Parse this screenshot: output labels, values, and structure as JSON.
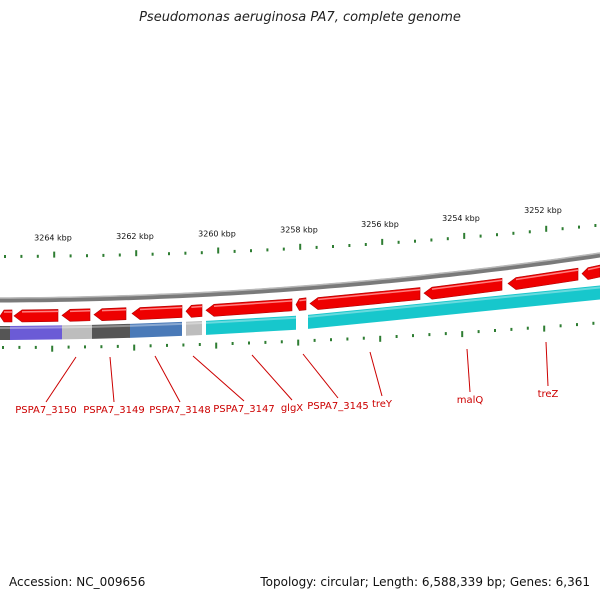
{
  "title": "Pseudomonas aeruginosa PA7, complete genome",
  "footer": {
    "accession": "Accession: NC_009656",
    "topology": "Topology: circular; Length: 6,588,339 bp; Genes: 6,361"
  },
  "scale_labels": [
    "3264 kbp",
    "3262 kbp",
    "3260 kbp",
    "3258 kbp",
    "3256 kbp",
    "3254 kbp",
    "3252 kbp"
  ],
  "gene_labels": [
    "PSPA7_3150",
    "PSPA7_3149",
    "PSPA7_3148",
    "PSPA7_3147",
    "glgX",
    "PSPA7_3145",
    "treY",
    "malQ",
    "treZ"
  ],
  "colors": {
    "forward_gene": "#ee0000",
    "reverse_gene": "#17c7cc",
    "backbone": "#888888",
    "ticks": "#2e7d32",
    "label": "#cc0000",
    "cog_purple": "#6b5bd6",
    "cog_dark": "#555555",
    "cog_blue": "#4a7ab8",
    "cog_light": "#bdbdbd"
  }
}
